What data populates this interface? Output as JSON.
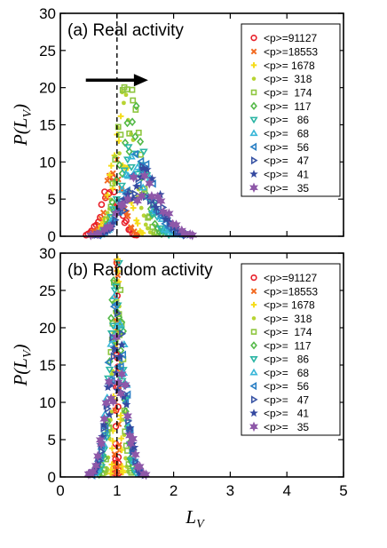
{
  "chart_data": [
    {
      "type": "scatter",
      "title": "(a) Real activity",
      "xlabel": "",
      "ylabel": "P(L_V)",
      "ylabel_parts": {
        "main": "P(L",
        "sub": "V",
        "close": ")"
      },
      "xlim": [
        0,
        5
      ],
      "ylim": [
        0,
        30
      ],
      "xticks": [
        0,
        1,
        2,
        3,
        4,
        5
      ],
      "yticks": [
        0,
        5,
        10,
        15,
        20,
        25,
        30
      ],
      "ytick_labels": [
        "0",
        "5",
        "10",
        "15",
        "20",
        "25",
        "30"
      ],
      "reference_line_x": 1,
      "arrow": {
        "from": [
          0.45,
          21
        ],
        "to": [
          1.55,
          21
        ]
      },
      "legend_position": "right",
      "series": [
        {
          "name": "<p>=91127",
          "marker": "circle",
          "color": "#e8202a",
          "center": 0.9,
          "spread": 0.16,
          "peak": 6.5
        },
        {
          "name": "<p>=18553",
          "marker": "x",
          "color": "#f26a21",
          "center": 0.95,
          "spread": 0.15,
          "peak": 8.5
        },
        {
          "name": "<p>= 1678",
          "marker": "plus",
          "color": "#f5dc1a",
          "center": 1.05,
          "spread": 0.15,
          "peak": 13
        },
        {
          "name": "<p>=  318",
          "marker": "dot",
          "color": "#b8d432",
          "center": 1.15,
          "spread": 0.17,
          "peak": 16
        },
        {
          "name": "<p>=  174",
          "marker": "square",
          "color": "#8ec63f",
          "center": 1.2,
          "spread": 0.18,
          "peak": 18.5
        },
        {
          "name": "<p>=  117",
          "marker": "diamond",
          "color": "#54b948",
          "center": 1.25,
          "spread": 0.2,
          "peak": 15
        },
        {
          "name": "<p>=   86",
          "marker": "tri-down",
          "color": "#2bb5a4",
          "center": 1.3,
          "spread": 0.22,
          "peak": 12
        },
        {
          "name": "<p>=   68",
          "marker": "tri-up",
          "color": "#38b6d8",
          "center": 1.35,
          "spread": 0.24,
          "peak": 10
        },
        {
          "name": "<p>=   56",
          "marker": "tri-left",
          "color": "#2a7fc4",
          "center": 1.4,
          "spread": 0.26,
          "peak": 9
        },
        {
          "name": "<p>=   47",
          "marker": "tri-right",
          "color": "#3a55a5",
          "center": 1.42,
          "spread": 0.28,
          "peak": 8
        },
        {
          "name": "<p>=   41",
          "marker": "star",
          "color": "#3549a0",
          "center": 1.45,
          "spread": 0.3,
          "peak": 7.5
        },
        {
          "name": "<p>=   35",
          "marker": "hexstar",
          "color": "#8e58a8",
          "center": 1.45,
          "spread": 0.32,
          "peak": 7
        }
      ]
    },
    {
      "type": "scatter",
      "title": "(b) Random activity",
      "xlabel": "L_V",
      "xlabel_parts": {
        "main": "L",
        "sub": "V"
      },
      "ylabel": "P(L_V)",
      "ylabel_parts": {
        "main": "P(L",
        "sub": "V",
        "close": ")"
      },
      "xlim": [
        0,
        5
      ],
      "ylim": [
        0,
        30
      ],
      "xticks": [
        0,
        1,
        2,
        3,
        4,
        5
      ],
      "xtick_labels": [
        "0",
        "1",
        "2",
        "3",
        "4",
        "5"
      ],
      "yticks": [
        0,
        5,
        10,
        15,
        20,
        25,
        30
      ],
      "ytick_labels": [
        "0",
        "5",
        "10",
        "15",
        "20",
        "25",
        "30"
      ],
      "reference_line_x": 1,
      "legend_position": "right",
      "series": [
        {
          "name": "<p>=91127",
          "marker": "circle",
          "color": "#e8202a",
          "center": 1.0,
          "spread": 0.012,
          "peak": 29
        },
        {
          "name": "<p>=18553",
          "marker": "x",
          "color": "#f26a21",
          "center": 1.0,
          "spread": 0.02,
          "peak": 29
        },
        {
          "name": "<p>= 1678",
          "marker": "plus",
          "color": "#f5dc1a",
          "center": 1.0,
          "spread": 0.04,
          "peak": 29
        },
        {
          "name": "<p>=  318",
          "marker": "dot",
          "color": "#b8d432",
          "center": 1.0,
          "spread": 0.07,
          "peak": 29
        },
        {
          "name": "<p>=  174",
          "marker": "square",
          "color": "#8ec63f",
          "center": 1.0,
          "spread": 0.09,
          "peak": 27
        },
        {
          "name": "<p>=  117",
          "marker": "diamond",
          "color": "#54b948",
          "center": 1.0,
          "spread": 0.11,
          "peak": 26
        },
        {
          "name": "<p>=   86",
          "marker": "tri-down",
          "color": "#2bb5a4",
          "center": 1.0,
          "spread": 0.12,
          "peak": 24
        },
        {
          "name": "<p>=   68",
          "marker": "tri-up",
          "color": "#38b6d8",
          "center": 1.0,
          "spread": 0.14,
          "peak": 22
        },
        {
          "name": "<p>=   56",
          "marker": "tri-left",
          "color": "#2a7fc4",
          "center": 1.0,
          "spread": 0.15,
          "peak": 20
        },
        {
          "name": "<p>=   47",
          "marker": "tri-right",
          "color": "#3a55a5",
          "center": 1.0,
          "spread": 0.16,
          "peak": 18
        },
        {
          "name": "<p>=   41",
          "marker": "star",
          "color": "#3549a0",
          "center": 1.0,
          "spread": 0.17,
          "peak": 16
        },
        {
          "name": "<p>=   35",
          "marker": "hexstar",
          "color": "#8e58a8",
          "center": 1.0,
          "spread": 0.18,
          "peak": 15
        }
      ]
    }
  ]
}
